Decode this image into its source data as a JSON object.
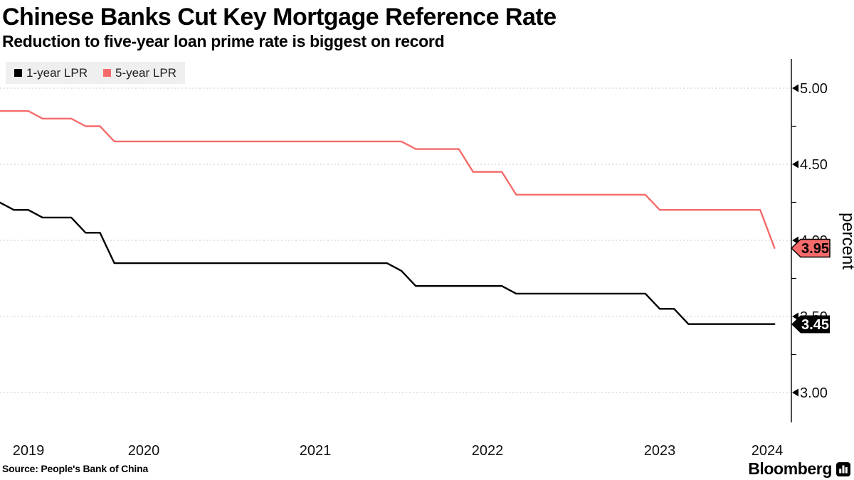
{
  "chart_data": {
    "type": "line",
    "title": "Chinese Banks Cut Key Mortgage Reference Rate",
    "subtitle": "Reduction to five-year loan prime rate is biggest on record",
    "legend_position": "top-left",
    "grid": "horizontal-dashed",
    "colors": {
      "series_1y": "#000000",
      "series_5y": "#f56b6b",
      "legend_bg": "#efefef",
      "gridline": "#c8c8c8",
      "axis": "#000000"
    },
    "x_axis": {
      "tick_labels": [
        "2019",
        "2020",
        "2021",
        "2022",
        "2023",
        "2024"
      ]
    },
    "y_axis": {
      "unit": "percent",
      "major_tick_labels": [
        "5.00",
        "4.50",
        "4.00",
        "3.50",
        "3.00"
      ],
      "major_tick_values": [
        5.0,
        4.5,
        4.0,
        3.5,
        3.0
      ],
      "minor_tick_values": [
        4.75,
        4.25,
        3.75,
        3.25
      ],
      "range": [
        2.8,
        5.19
      ]
    },
    "series": [
      {
        "name": "1-year LPR",
        "color": "#000000",
        "end_label": "3.45",
        "end_value": 3.45,
        "points": [
          [
            "2019-08",
            4.25
          ],
          [
            "2019-09",
            4.2
          ],
          [
            "2019-10",
            4.2
          ],
          [
            "2019-11",
            4.15
          ],
          [
            "2020-01",
            4.15
          ],
          [
            "2020-02",
            4.05
          ],
          [
            "2020-03",
            4.05
          ],
          [
            "2020-04",
            3.85
          ],
          [
            "2021-11",
            3.85
          ],
          [
            "2021-12",
            3.8
          ],
          [
            "2022-01",
            3.7
          ],
          [
            "2022-07",
            3.7
          ],
          [
            "2022-08",
            3.65
          ],
          [
            "2023-05",
            3.65
          ],
          [
            "2023-06",
            3.55
          ],
          [
            "2023-07",
            3.55
          ],
          [
            "2023-08",
            3.45
          ],
          [
            "2024-02",
            3.45
          ]
        ]
      },
      {
        "name": "5-year LPR",
        "color": "#f56b6b",
        "end_label": "3.95",
        "end_value": 3.95,
        "points": [
          [
            "2019-08",
            4.85
          ],
          [
            "2019-10",
            4.85
          ],
          [
            "2019-11",
            4.8
          ],
          [
            "2020-01",
            4.8
          ],
          [
            "2020-02",
            4.75
          ],
          [
            "2020-03",
            4.75
          ],
          [
            "2020-04",
            4.65
          ],
          [
            "2021-12",
            4.65
          ],
          [
            "2022-01",
            4.6
          ],
          [
            "2022-04",
            4.6
          ],
          [
            "2022-05",
            4.45
          ],
          [
            "2022-07",
            4.45
          ],
          [
            "2022-08",
            4.3
          ],
          [
            "2023-05",
            4.3
          ],
          [
            "2023-06",
            4.2
          ],
          [
            "2024-01",
            4.2
          ],
          [
            "2024-02",
            3.95
          ]
        ]
      }
    ]
  },
  "footer": {
    "source": "Source: People's Bank of China",
    "brand": "Bloomberg"
  }
}
